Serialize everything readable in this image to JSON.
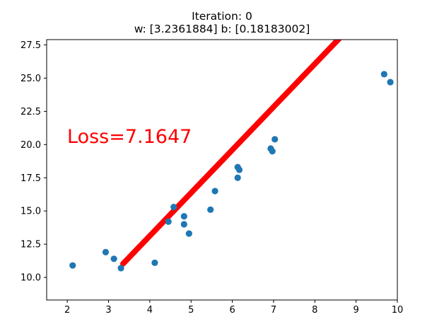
{
  "chart_data": {
    "type": "scatter",
    "title_line1": "Iteration: 0",
    "title_line2": "w: [3.2361884] b: [0.18183002]",
    "annotation": "Loss=7.1647",
    "xlim": [
      1.5,
      10
    ],
    "ylim": [
      8.3,
      27.9
    ],
    "xticks": [
      2,
      3,
      4,
      5,
      6,
      7,
      8,
      9,
      10
    ],
    "yticks": [
      10.0,
      12.5,
      15.0,
      17.5,
      20.0,
      22.5,
      25.0,
      27.5
    ],
    "xtick_labels": [
      "2",
      "3",
      "4",
      "5",
      "6",
      "7",
      "8",
      "9",
      "10"
    ],
    "ytick_labels": [
      "10.0",
      "12.5",
      "15.0",
      "17.5",
      "20.0",
      "22.5",
      "25.0",
      "27.5"
    ],
    "points": {
      "x": [
        2.13,
        2.93,
        3.13,
        3.3,
        4.12,
        4.45,
        4.58,
        4.83,
        4.83,
        4.95,
        5.47,
        5.58,
        6.13,
        6.13,
        6.17,
        6.93,
        6.97,
        7.03,
        9.68,
        9.83
      ],
      "y": [
        10.9,
        11.9,
        11.4,
        10.7,
        11.1,
        14.2,
        15.3,
        14.6,
        14.0,
        13.3,
        15.1,
        16.5,
        17.5,
        18.3,
        18.1,
        19.7,
        19.5,
        20.4,
        25.3,
        24.7
      ]
    },
    "fit_line": {
      "w": 3.2361884,
      "b": 0.18183002,
      "x_range": [
        3.35,
        9.83
      ]
    },
    "colors": {
      "points": "#1f77b4",
      "line": "#ff0000",
      "annotation": "#ff0000"
    }
  }
}
